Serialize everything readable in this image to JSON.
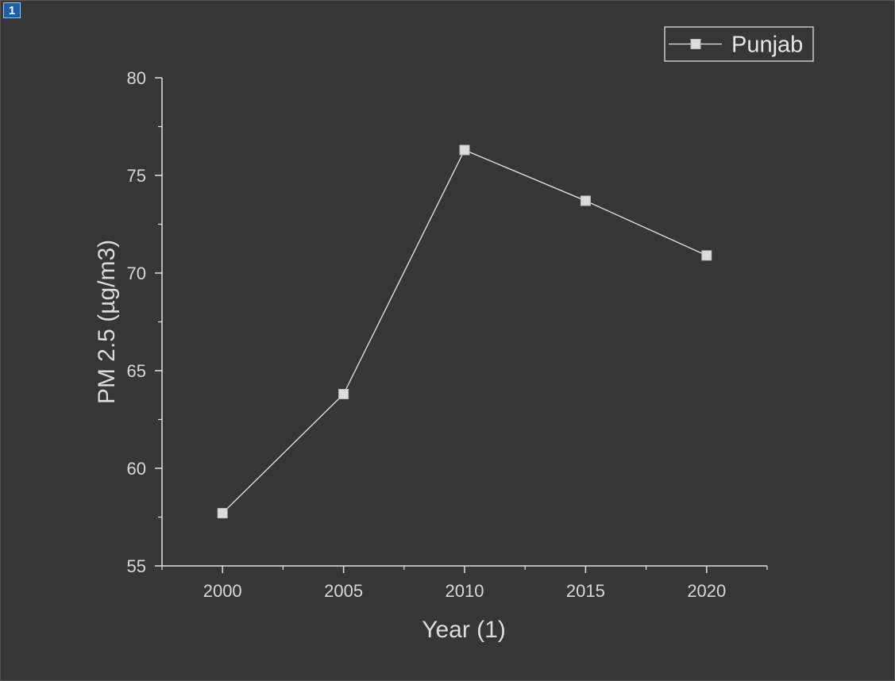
{
  "layer_badge": "1",
  "chart_data": {
    "type": "line",
    "x": [
      2000,
      2005,
      2010,
      2015,
      2020
    ],
    "series": [
      {
        "name": "Punjab",
        "values": [
          57.7,
          63.8,
          76.3,
          73.7,
          70.9
        ],
        "marker": "square"
      }
    ],
    "xlabel": "Year (1)",
    "ylabel": "PM 2.5 (µg/m3)",
    "xlim": [
      1997.5,
      2022.5
    ],
    "ylim": [
      55,
      80
    ],
    "x_ticks": [
      "2000",
      "2005",
      "2010",
      "2015",
      "2020"
    ],
    "y_ticks": [
      "55",
      "60",
      "65",
      "70",
      "75",
      "80"
    ],
    "grid": false,
    "legend_position": "top-right",
    "colors": {
      "background": "#363636",
      "axis": "#e0e0e0",
      "line": "#e6e6e6",
      "marker": "#dcdcdc"
    }
  }
}
